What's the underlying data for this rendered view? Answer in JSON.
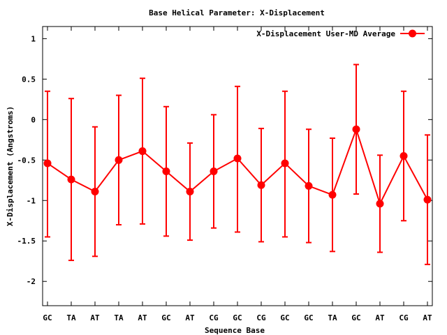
{
  "chart_data": {
    "type": "line",
    "title": "Base  Helical Parameter: X-Displacement",
    "xlabel": "Sequence Base",
    "ylabel": "X-Displacement (Angstroms)",
    "categories": [
      "GC",
      "TA",
      "AT",
      "TA",
      "AT",
      "GC",
      "AT",
      "CG",
      "GC",
      "CG",
      "GC",
      "GC",
      "TA",
      "GC",
      "AT",
      "CG",
      "AT"
    ],
    "ylim": [
      -2.3,
      1.15
    ],
    "yticks": [
      1,
      0.5,
      0,
      -0.5,
      -1,
      -1.5,
      -2
    ],
    "ytick_labels": [
      "1",
      "0.5",
      "0",
      "-0.5",
      "-1",
      "-1.5",
      "-2"
    ],
    "legend_position": "top-right",
    "grid": false,
    "series": [
      {
        "name": "X-Displacement User-MD Average",
        "color": "#ff0000",
        "marker": "circle",
        "values": [
          -0.54,
          -0.74,
          -0.89,
          -0.5,
          -0.39,
          -0.64,
          -0.89,
          -0.64,
          -0.48,
          -0.81,
          -0.54,
          -0.82,
          -0.93,
          -0.12,
          -1.04,
          -0.45,
          -0.99
        ],
        "error_lower": [
          -1.45,
          -1.74,
          -1.69,
          -1.3,
          -1.29,
          -1.44,
          -1.49,
          -1.34,
          -1.39,
          -1.51,
          -1.45,
          -1.52,
          -1.63,
          -0.92,
          -1.64,
          -1.25,
          -1.79
        ],
        "error_upper": [
          0.35,
          0.26,
          -0.09,
          0.3,
          0.51,
          0.16,
          -0.29,
          0.06,
          0.41,
          -0.11,
          0.35,
          -0.12,
          -0.23,
          0.68,
          -0.44,
          0.35,
          -0.19
        ]
      }
    ]
  }
}
